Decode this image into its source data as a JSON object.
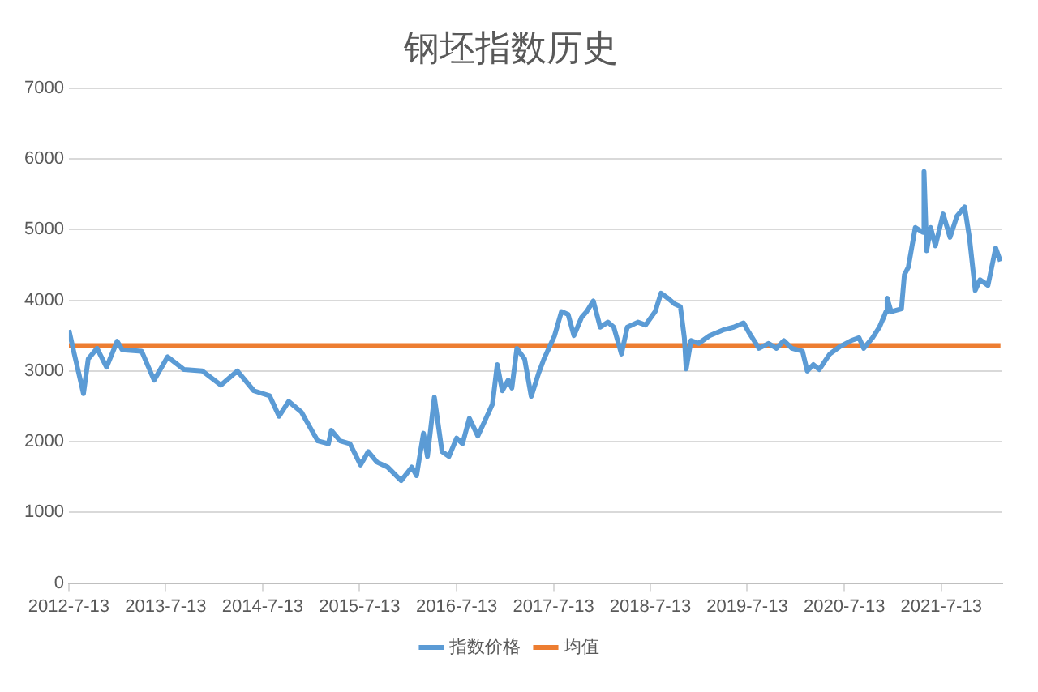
{
  "chart_data": {
    "type": "line",
    "title": "钢坯指数历史",
    "legend": "bottom",
    "grid": "y",
    "marker": "none",
    "line_style": "solid",
    "xlim": [
      "2012-07-13",
      "2022-02-28"
    ],
    "xticks": [
      {
        "value": "2012-07-13",
        "label": "2012-7-13"
      },
      {
        "value": "2013-07-13",
        "label": "2013-7-13"
      },
      {
        "value": "2014-07-13",
        "label": "2014-7-13"
      },
      {
        "value": "2015-07-13",
        "label": "2015-7-13"
      },
      {
        "value": "2016-07-13",
        "label": "2016-7-13"
      },
      {
        "value": "2017-07-13",
        "label": "2017-7-13"
      },
      {
        "value": "2018-07-13",
        "label": "2018-7-13"
      },
      {
        "value": "2019-07-13",
        "label": "2019-7-13"
      },
      {
        "value": "2020-07-13",
        "label": "2020-7-13"
      },
      {
        "value": "2021-07-13",
        "label": "2021-7-13"
      }
    ],
    "ylim": [
      0,
      7000
    ],
    "yticks": [
      0,
      1000,
      2000,
      3000,
      4000,
      5000,
      6000,
      7000
    ],
    "series": [
      {
        "name": "指数价格",
        "color": "#5b9bd5",
        "x": [
          "2012-07-13",
          "2012-07-31",
          "2012-09-06",
          "2012-09-24",
          "2012-10-27",
          "2012-12-02",
          "2013-01-11",
          "2013-01-30",
          "2013-04-13",
          "2013-05-30",
          "2013-07-20",
          "2013-09-20",
          "2013-11-28",
          "2014-02-06",
          "2014-04-09",
          "2014-06-10",
          "2014-08-08",
          "2014-09-13",
          "2014-10-19",
          "2014-12-06",
          "2015-01-08",
          "2015-02-06",
          "2015-03-18",
          "2015-03-29",
          "2015-05-01",
          "2015-06-07",
          "2015-07-17",
          "2015-08-15",
          "2015-09-17",
          "2015-10-27",
          "2015-12-17",
          "2016-01-26",
          "2016-02-13",
          "2016-03-10",
          "2016-03-25",
          "2016-04-20",
          "2016-05-19",
          "2016-06-14",
          "2016-07-13",
          "2016-08-04",
          "2016-08-30",
          "2016-10-01",
          "2016-11-03",
          "2016-11-25",
          "2016-12-13",
          "2017-01-01",
          "2017-01-23",
          "2017-02-06",
          "2017-02-25",
          "2017-03-26",
          "2017-04-20",
          "2017-05-19",
          "2017-06-07",
          "2017-07-17",
          "2017-08-12",
          "2017-09-06",
          "2017-09-28",
          "2017-10-27",
          "2017-11-15",
          "2017-12-10",
          "2018-01-05",
          "2018-02-03",
          "2018-02-25",
          "2018-03-26",
          "2018-04-17",
          "2018-05-27",
          "2018-06-25",
          "2018-07-31",
          "2018-08-22",
          "2018-09-17",
          "2018-10-12",
          "2018-11-03",
          "2018-11-18",
          "2018-11-25",
          "2018-12-13",
          "2019-01-11",
          "2019-02-21",
          "2019-04-13",
          "2019-05-23",
          "2019-06-29",
          "2019-07-20",
          "2019-08-26",
          "2019-10-01",
          "2019-10-31",
          "2019-11-28",
          "2019-12-28",
          "2020-02-06",
          "2020-02-24",
          "2020-03-18",
          "2020-04-09",
          "2020-05-19",
          "2020-06-28",
          "2020-08-08",
          "2020-09-06",
          "2020-09-24",
          "2020-10-27",
          "2020-11-22",
          "2020-12-17",
          "2020-12-21",
          "2021-01-05",
          "2021-02-13",
          "2021-02-24",
          "2021-03-11",
          "2021-04-06",
          "2021-05-05",
          "2021-05-09",
          "2021-05-19",
          "2021-06-03",
          "2021-06-21",
          "2021-07-20",
          "2021-08-15",
          "2021-09-10",
          "2021-10-09",
          "2021-10-27",
          "2021-11-18",
          "2021-12-06",
          "2022-01-05",
          "2022-02-03",
          "2022-02-21"
        ],
        "values": [
          3580,
          3280,
          2680,
          3170,
          3320,
          3055,
          3420,
          3300,
          3280,
          2870,
          3200,
          3020,
          3000,
          2800,
          3000,
          2720,
          2650,
          2360,
          2570,
          2420,
          2200,
          2010,
          1970,
          2160,
          2010,
          1970,
          1670,
          1860,
          1710,
          1640,
          1450,
          1640,
          1520,
          2120,
          1790,
          2630,
          1860,
          1790,
          2050,
          1970,
          2330,
          2080,
          2350,
          2530,
          3090,
          2720,
          2870,
          2760,
          3320,
          3170,
          2640,
          2980,
          3170,
          3500,
          3840,
          3800,
          3500,
          3760,
          3840,
          3990,
          3620,
          3690,
          3620,
          3240,
          3620,
          3690,
          3650,
          3840,
          4100,
          4030,
          3950,
          3910,
          3470,
          3030,
          3430,
          3390,
          3500,
          3580,
          3620,
          3680,
          3540,
          3320,
          3390,
          3320,
          3430,
          3320,
          3280,
          3000,
          3090,
          3020,
          3240,
          3350,
          3430,
          3470,
          3320,
          3470,
          3620,
          3840,
          4030,
          3840,
          3880,
          4360,
          4470,
          5030,
          4960,
          5820,
          4700,
          5030,
          4770,
          5220,
          4890,
          5190,
          5320,
          4890,
          4140,
          4290,
          4210,
          4740,
          4550
        ]
      },
      {
        "name": "均值",
        "color": "#ed7d31",
        "x": [
          "2012-07-13",
          "2022-02-21"
        ],
        "values": [
          3360,
          3360
        ]
      }
    ]
  }
}
